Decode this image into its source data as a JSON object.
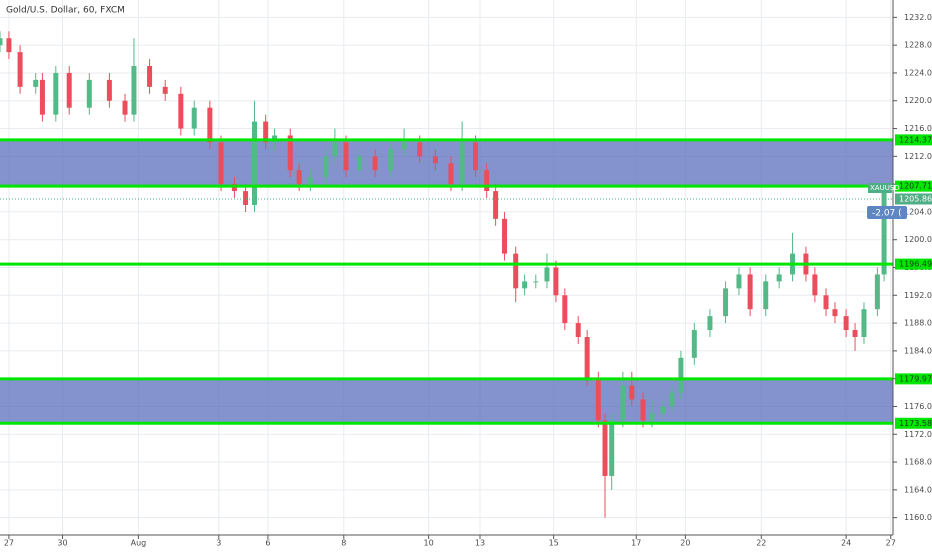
{
  "chart_data": {
    "type": "candlestick",
    "title": "Gold/U.S. Dollar, 60, FXCM",
    "x": [
      0,
      4,
      9,
      16,
      19,
      25,
      31,
      40,
      49,
      56,
      60,
      67,
      74,
      81,
      87,
      94,
      99,
      105,
      110,
      114,
      119,
      123,
      130,
      134,
      139,
      146,
      150,
      155,
      161,
      168,
      175,
      181,
      188,
      195,
      202,
      207,
      213,
      218,
      222,
      226,
      231,
      235,
      240,
      245,
      249,
      253,
      259,
      263,
      268,
      271,
      274,
      279,
      283,
      288,
      292,
      297,
      301,
      305,
      311,
      318,
      325,
      331,
      336,
      343,
      349,
      355,
      361,
      365,
      370,
      374,
      379,
      383,
      387,
      393,
      396
    ],
    "open": [
      1228,
      1229,
      1227,
      1222,
      1223,
      1218,
      1224,
      1219,
      1223,
      1220,
      1218,
      1225,
      1222,
      1221,
      1216,
      1219,
      1214,
      1208,
      1207,
      1205,
      1217,
      1214,
      1215,
      1210,
      1208,
      1209,
      1212,
      1214,
      1210,
      1212,
      1210,
      1213,
      1214,
      1212,
      1211,
      1208,
      1214,
      1210,
      1207,
      1203,
      1198,
      1193,
      1194,
      1194,
      1196,
      1192,
      1188,
      1186,
      1180,
      1174,
      1166,
      1174,
      1179,
      1177,
      1174,
      1175,
      1176,
      1178,
      1183,
      1187,
      1189,
      1193,
      1195,
      1190,
      1194,
      1195,
      1198,
      1195,
      1192,
      1190,
      1189,
      1187,
      1186,
      1190,
      1195
    ],
    "high": [
      1230,
      1230,
      1228,
      1224,
      1224,
      1225,
      1225,
      1224,
      1224,
      1221,
      1229,
      1226,
      1223,
      1222,
      1220,
      1220,
      1215,
      1209,
      1208,
      1220,
      1218,
      1216,
      1216,
      1211,
      1210,
      1213,
      1216,
      1215,
      1213,
      1213,
      1214,
      1216,
      1215,
      1213,
      1212,
      1217,
      1215,
      1211,
      1208,
      1204,
      1199,
      1195,
      1195,
      1198,
      1197,
      1193,
      1189,
      1187,
      1181,
      1175,
      1175,
      1181,
      1181,
      1178,
      1177,
      1177,
      1179,
      1184,
      1188,
      1190,
      1194,
      1196,
      1196,
      1195,
      1196,
      1201,
      1199,
      1196,
      1193,
      1191,
      1190,
      1188,
      1191,
      1196,
      1208
    ],
    "low": [
      1227,
      1226,
      1221,
      1221,
      1217,
      1217,
      1218,
      1218,
      1219,
      1217,
      1217,
      1221,
      1220,
      1215,
      1215,
      1213,
      1207,
      1206,
      1204,
      1204,
      1213,
      1213,
      1209,
      1207,
      1207,
      1208,
      1211,
      1209,
      1209,
      1209,
      1209,
      1212,
      1211,
      1210,
      1207,
      1207,
      1209,
      1206,
      1202,
      1197,
      1191,
      1192,
      1193,
      1193,
      1191,
      1187,
      1185,
      1179,
      1173,
      1160,
      1164,
      1173,
      1176,
      1173,
      1173,
      1174,
      1175,
      1177,
      1182,
      1186,
      1188,
      1192,
      1189,
      1189,
      1193,
      1194,
      1194,
      1191,
      1189,
      1188,
      1186,
      1184,
      1185,
      1189,
      1194
    ],
    "close": [
      1229,
      1227,
      1222,
      1223,
      1218,
      1224,
      1219,
      1223,
      1220,
      1218,
      1225,
      1222,
      1221,
      1216,
      1219,
      1214,
      1208,
      1207,
      1205,
      1217,
      1214,
      1215,
      1210,
      1208,
      1209,
      1212,
      1214,
      1210,
      1212,
      1210,
      1213,
      1214,
      1212,
      1211,
      1208,
      1214,
      1210,
      1207,
      1203,
      1198,
      1193,
      1194,
      1194,
      1196,
      1192,
      1188,
      1186,
      1180,
      1174,
      1166,
      1174,
      1179,
      1177,
      1174,
      1175,
      1176,
      1178,
      1183,
      1187,
      1189,
      1193,
      1195,
      1190,
      1194,
      1195,
      1198,
      1195,
      1192,
      1190,
      1189,
      1187,
      1186,
      1190,
      1195,
      1207
    ],
    "up_color": "#53b987",
    "down_color": "#eb4d5c",
    "xlim": [
      0,
      400
    ],
    "xticks": [
      {
        "value": 4,
        "label": "27"
      },
      {
        "value": 28,
        "label": "30"
      },
      {
        "value": 62,
        "label": "Aug"
      },
      {
        "value": 98,
        "label": "3"
      },
      {
        "value": 120,
        "label": "6"
      },
      {
        "value": 154,
        "label": "8"
      },
      {
        "value": 192,
        "label": "10"
      },
      {
        "value": 215,
        "label": "13"
      },
      {
        "value": 248,
        "label": "15"
      },
      {
        "value": 285,
        "label": "17"
      },
      {
        "value": 307,
        "label": "20"
      },
      {
        "value": 341,
        "label": "22"
      },
      {
        "value": 379,
        "label": "24"
      },
      {
        "value": 399,
        "label": "27"
      }
    ],
    "ylim": [
      1157.5,
      1234.5
    ],
    "yticks": [
      {
        "value": 1160,
        "label": "1160.00"
      },
      {
        "value": 1164,
        "label": "1164.00"
      },
      {
        "value": 1168,
        "label": "1168.00"
      },
      {
        "value": 1172,
        "label": "1172.00"
      },
      {
        "value": 1176,
        "label": "1176.00"
      },
      {
        "value": 1180,
        "label": "1180.00"
      },
      {
        "value": 1184,
        "label": "1184.00"
      },
      {
        "value": 1188,
        "label": "1188.00"
      },
      {
        "value": 1192,
        "label": "1192.00"
      },
      {
        "value": 1196,
        "label": "1196.00"
      },
      {
        "value": 1200,
        "label": "1200.00"
      },
      {
        "value": 1204,
        "label": "1204.00"
      },
      {
        "value": 1208,
        "label": "1208.00"
      },
      {
        "value": 1212,
        "label": "1212.00"
      },
      {
        "value": 1216,
        "label": "1216.00"
      },
      {
        "value": 1220,
        "label": "1220.00"
      },
      {
        "value": 1224,
        "label": "1224.00"
      },
      {
        "value": 1228,
        "label": "1228.00"
      },
      {
        "value": 1232,
        "label": "1232.00"
      }
    ],
    "grid": true,
    "zones": [
      [
        1207.71,
        1214.37
      ],
      [
        1173.58,
        1179.97
      ]
    ],
    "zone_color": "#5b6fbd",
    "levels": [
      1214.37,
      1207.71,
      1196.49,
      1179.97,
      1173.58
    ],
    "level_color": "#00e600",
    "last_price": 1205.86,
    "last_price_color": "#4fae85",
    "symbol_tag": "XAUUSD",
    "change_tag": "-2.07 (",
    "change_color": "#5f86c4"
  }
}
